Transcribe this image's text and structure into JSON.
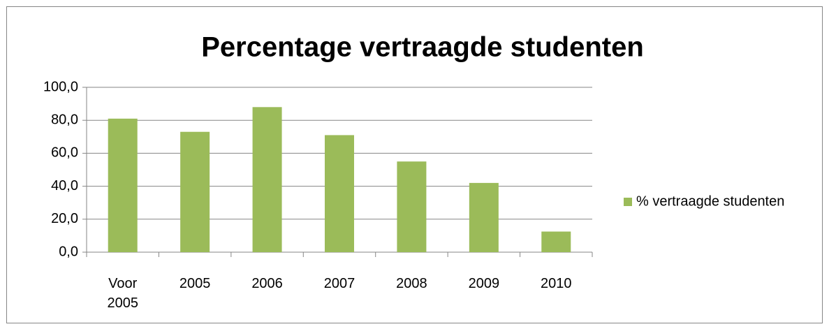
{
  "chart_data": {
    "type": "bar",
    "title": "Percentage vertraagde studenten",
    "categories": [
      "Voor 2005",
      "2005",
      "2006",
      "2007",
      "2008",
      "2009",
      "2010"
    ],
    "series": [
      {
        "name": "% vertraagde studenten",
        "color": "#9bbb59",
        "values": [
          81,
          73,
          88,
          71,
          55,
          42,
          12.5
        ]
      }
    ],
    "ylim": [
      0,
      100
    ],
    "yticks": [
      {
        "value": 0,
        "label": "0,0"
      },
      {
        "value": 20,
        "label": "20,0"
      },
      {
        "value": 40,
        "label": "40,0"
      },
      {
        "value": 60,
        "label": "60,0"
      },
      {
        "value": 80,
        "label": "80,0"
      },
      {
        "value": 100,
        "label": "100,0"
      }
    ],
    "grid": true,
    "legend": "right"
  }
}
